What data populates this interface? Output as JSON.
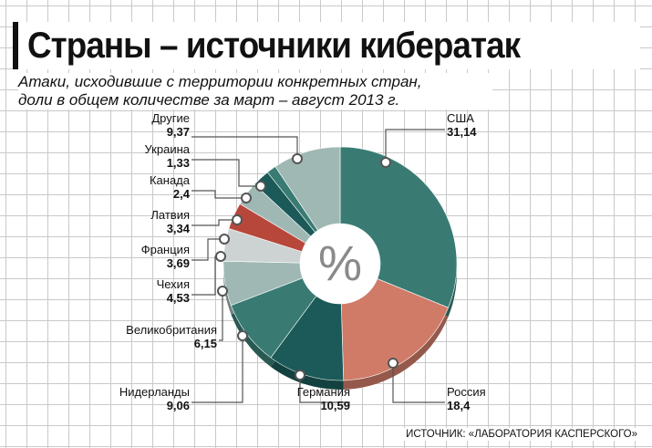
{
  "title": "Страны – источники кибератак",
  "subtitle_lines": [
    "Атаки, исходившие с территории конкретных стран,",
    "доли в общем количестве за март – август 2013 г."
  ],
  "center_symbol": "%",
  "source": "ИСТОЧНИК: «ЛАБОРАТОРИЯ КАСПЕРСКОГО»",
  "chart_data": {
    "type": "pie",
    "title": "Страны – источники кибератак",
    "categories": [
      "США",
      "Россия",
      "Германия",
      "Нидерланды",
      "Великобритания",
      "Чехия",
      "Франция",
      "Латвия",
      "Канада",
      "Украина",
      "Другие"
    ],
    "values": [
      31.14,
      18.4,
      10.59,
      9.06,
      6.15,
      4.53,
      3.69,
      3.34,
      2.4,
      1.33,
      9.37
    ],
    "value_labels": [
      "31,14",
      "18,4",
      "10,59",
      "9,06",
      "6,15",
      "4,53",
      "3,69",
      "3,34",
      "2,4",
      "1,33",
      "9,37"
    ],
    "colors": [
      "#397b73",
      "#cf7b68",
      "#1b5a58",
      "#397b73",
      "#9fb8b4",
      "#cdd3d2",
      "#b8473b",
      "#9fb8b4",
      "#1b5a58",
      "#397b73",
      "#9fb8b4"
    ],
    "legend": "none"
  }
}
